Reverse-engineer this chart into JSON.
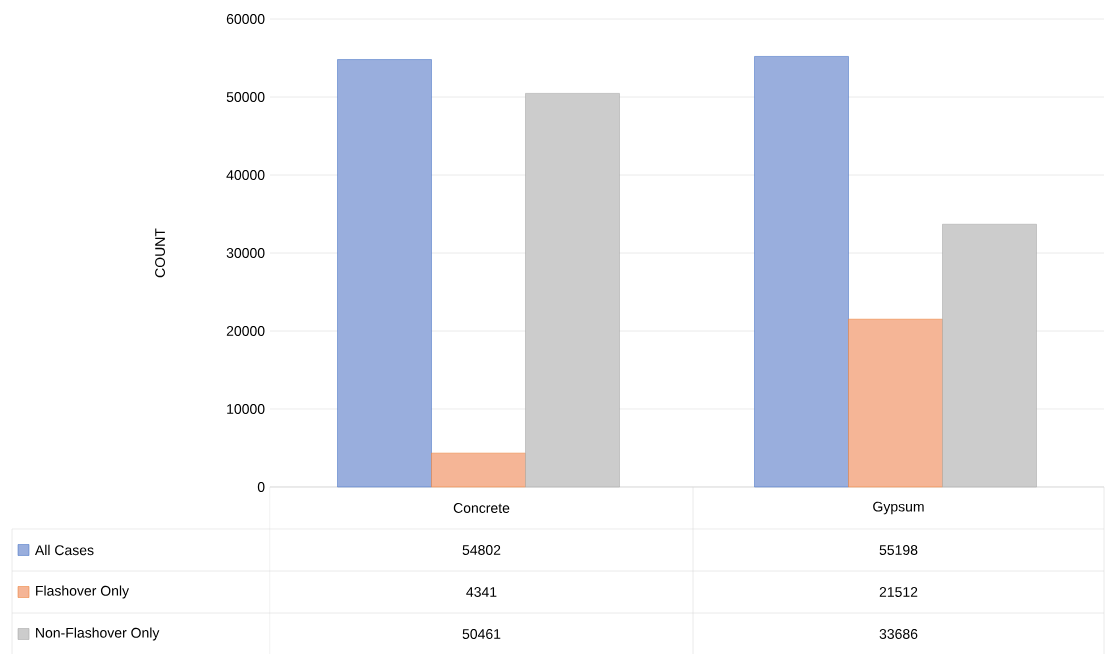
{
  "chart_data": {
    "type": "bar",
    "ylabel": "COUNT",
    "categories": [
      "Concrete",
      "Gypsum"
    ],
    "series": [
      {
        "name": "All Cases",
        "color": "#99aedd",
        "values": [
          54802,
          55198
        ]
      },
      {
        "name": "Flashover Only",
        "color": "#f5b596",
        "values": [
          4341,
          21512
        ]
      },
      {
        "name": "Non-Flashover Only",
        "color": "#cccccc",
        "values": [
          50461,
          33686
        ]
      }
    ],
    "ylim": [
      0,
      60000
    ],
    "yticks": [
      0,
      10000,
      20000,
      30000,
      40000,
      50000,
      60000
    ],
    "grid": "y",
    "legend": "bottom",
    "data_labels": true
  }
}
